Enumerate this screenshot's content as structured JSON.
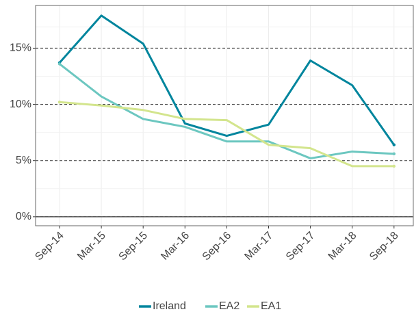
{
  "chart_data": {
    "type": "line",
    "categories": [
      "Sep-14",
      "Mar-15",
      "Sep-15",
      "Mar-16",
      "Sep-16",
      "Mar-17",
      "Sep-17",
      "Mar-18",
      "Sep-18"
    ],
    "series": [
      {
        "name": "Ireland",
        "color": "#00859d",
        "values": [
          13.7,
          17.9,
          15.4,
          8.3,
          7.2,
          8.2,
          13.9,
          11.7,
          6.4
        ]
      },
      {
        "name": "EA2",
        "color": "#6cc7c0",
        "values": [
          13.6,
          10.7,
          8.7,
          8.0,
          6.7,
          6.7,
          5.2,
          5.8,
          5.6
        ]
      },
      {
        "name": "EA1",
        "color": "#d3e58d",
        "values": [
          10.2,
          9.9,
          9.5,
          8.7,
          8.6,
          6.4,
          6.1,
          4.5,
          4.5
        ]
      }
    ],
    "ylim": [
      -0.8,
      18.8
    ],
    "yticks": [
      {
        "value": 0,
        "label": "0%"
      },
      {
        "value": 5,
        "label": "5%"
      },
      {
        "value": 10,
        "label": "10%"
      },
      {
        "value": 15,
        "label": "15%"
      }
    ],
    "grid": true,
    "legend": "bottom"
  }
}
